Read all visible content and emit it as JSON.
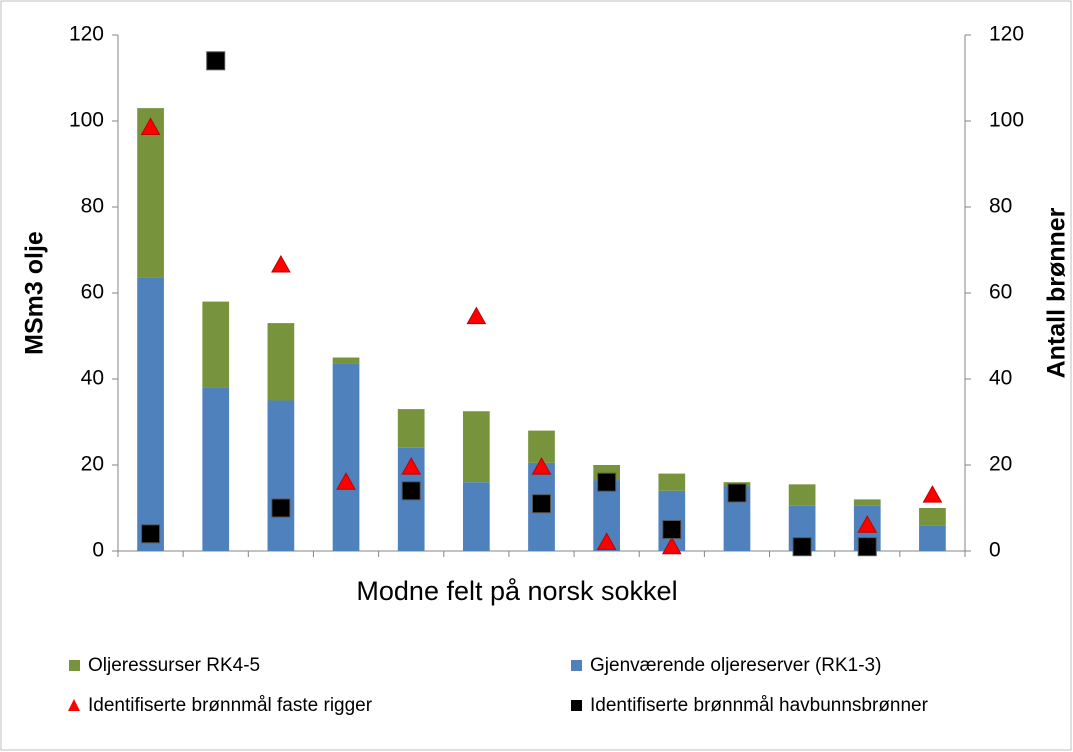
{
  "chart_data": {
    "type": "bar",
    "stacked": true,
    "ylabel": "MSm3 olje",
    "y2label": "Antall brønner",
    "xlabel": "Modne felt på norsk sokkel",
    "categories": [
      null,
      null,
      null,
      null,
      null,
      null,
      null,
      null,
      null,
      null,
      null,
      null,
      null
    ],
    "ylim": [
      0,
      120
    ],
    "yticks": [
      0,
      20,
      40,
      60,
      80,
      100,
      120
    ],
    "y2lim": [
      0,
      120
    ],
    "y2ticks": [
      0,
      20,
      40,
      60,
      80,
      100,
      120
    ],
    "grid": false,
    "legend": "bottom",
    "series": [
      {
        "name": "Oljeressurser RK4-5",
        "type": "bar",
        "color": "#77933c",
        "values": [
          39.5,
          20,
          18,
          1.5,
          9,
          16.5,
          7.5,
          3.5,
          4,
          1,
          5,
          1.5,
          4
        ]
      },
      {
        "name": "Gjenværende oljereserver (RK1-3)",
        "type": "bar",
        "color": "#4f81bd",
        "values": [
          63.5,
          38,
          35,
          43.5,
          24,
          16,
          20.5,
          16.5,
          14,
          15,
          10.5,
          10.5,
          6
        ]
      },
      {
        "name": "Identifiserte brønnmål faste rigger",
        "type": "scatter",
        "axis": "y2",
        "marker": "triangle",
        "color": "#ff0000",
        "values": [
          98.5,
          null,
          66.5,
          16,
          19.5,
          54.5,
          19.5,
          2,
          1,
          null,
          null,
          6,
          13
        ]
      },
      {
        "name": "Identifiserte brønnmål havbunnsbrønner",
        "type": "scatter",
        "axis": "y2",
        "marker": "square",
        "color": "#000000",
        "values": [
          4,
          114,
          10,
          null,
          14,
          null,
          11,
          16,
          5,
          13.5,
          1,
          1,
          null
        ]
      }
    ]
  }
}
